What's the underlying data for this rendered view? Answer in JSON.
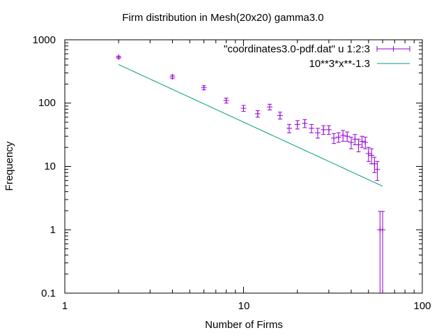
{
  "chart_data": {
    "type": "scatter",
    "title": "Firm distribution in Mesh(20x20) gamma3.0",
    "xlabel": "Number of Firms",
    "ylabel": "Frequency",
    "xscale": "log",
    "yscale": "log",
    "xlim": [
      1,
      100
    ],
    "ylim": [
      0.1,
      1000
    ],
    "x_ticks": [
      "1",
      "10",
      "100"
    ],
    "y_ticks": [
      "0.1",
      "1",
      "10",
      "100",
      "1000"
    ],
    "grid": false,
    "legend_position": "top-right",
    "series": [
      {
        "name": "\"coordinates3.0-pdf.dat\" u 1:2:3",
        "kind": "errorbars",
        "color": "#9400d3",
        "points": [
          {
            "x": 2,
            "y": 530,
            "err": 23
          },
          {
            "x": 4,
            "y": 260,
            "err": 16
          },
          {
            "x": 6,
            "y": 175,
            "err": 13
          },
          {
            "x": 8,
            "y": 110,
            "err": 10
          },
          {
            "x": 10,
            "y": 83,
            "err": 9
          },
          {
            "x": 12,
            "y": 68,
            "err": 8
          },
          {
            "x": 14,
            "y": 87,
            "err": 9
          },
          {
            "x": 16,
            "y": 64,
            "err": 8
          },
          {
            "x": 18,
            "y": 40,
            "err": 6
          },
          {
            "x": 20,
            "y": 46,
            "err": 7
          },
          {
            "x": 22,
            "y": 48,
            "err": 7
          },
          {
            "x": 24,
            "y": 40,
            "err": 6
          },
          {
            "x": 26,
            "y": 34,
            "err": 6
          },
          {
            "x": 28,
            "y": 38,
            "err": 6
          },
          {
            "x": 30,
            "y": 38,
            "err": 6
          },
          {
            "x": 32,
            "y": 28,
            "err": 5
          },
          {
            "x": 34,
            "y": 29,
            "err": 5
          },
          {
            "x": 36,
            "y": 31,
            "err": 6
          },
          {
            "x": 38,
            "y": 30,
            "err": 5
          },
          {
            "x": 40,
            "y": 24,
            "err": 5
          },
          {
            "x": 42,
            "y": 27,
            "err": 5
          },
          {
            "x": 44,
            "y": 22,
            "err": 5
          },
          {
            "x": 46,
            "y": 25,
            "err": 5
          },
          {
            "x": 48,
            "y": 24,
            "err": 5
          },
          {
            "x": 50,
            "y": 16,
            "err": 4
          },
          {
            "x": 52,
            "y": 15,
            "err": 4
          },
          {
            "x": 54,
            "y": 11,
            "err": 3
          },
          {
            "x": 56,
            "y": 9,
            "err": 3
          },
          {
            "x": 58,
            "y": 1,
            "err": 0.95
          },
          {
            "x": 60,
            "y": 1,
            "err": 0.95
          }
        ]
      },
      {
        "name": "10**3*x**-1.3",
        "kind": "function",
        "color": "#009e73",
        "coef": 1000,
        "exponent": -1.3,
        "x_range": [
          2,
          60
        ]
      }
    ]
  }
}
